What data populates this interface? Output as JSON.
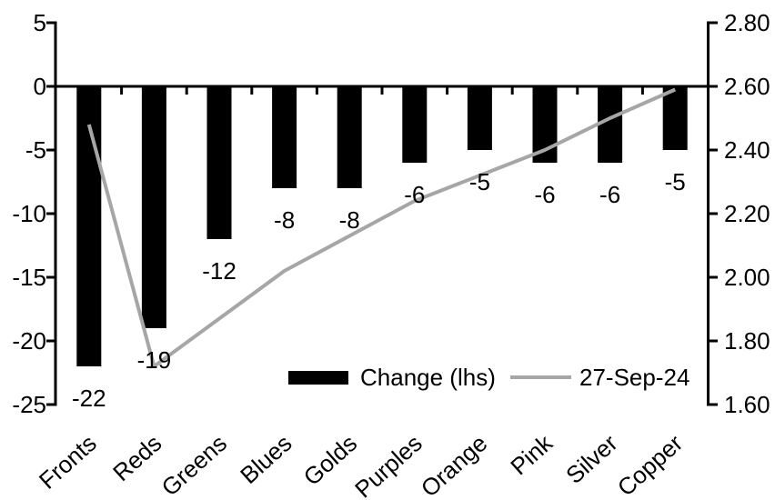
{
  "chart_data": {
    "type": "combo-bar-line",
    "title": "",
    "categories": [
      "Fronts",
      "Reds",
      "Greens",
      "Blues",
      "Golds",
      "Purples",
      "Orange",
      "Pink",
      "Silver",
      "Copper"
    ],
    "series": [
      {
        "name": "Change (lhs)",
        "type": "bar",
        "axis": "left",
        "color": "#000000",
        "values": [
          -22,
          -19,
          -12,
          -8,
          -8,
          -6,
          -5,
          -6,
          -6,
          -5
        ],
        "data_labels": [
          "-22",
          "-19",
          "-12",
          "-8",
          "-8",
          "-6",
          "-5",
          "-6",
          "-6",
          "-5"
        ]
      },
      {
        "name": "27-Sep-24",
        "type": "line",
        "axis": "right",
        "color": "#a6a6a6",
        "values": [
          2.48,
          1.72,
          1.87,
          2.02,
          2.13,
          2.24,
          2.32,
          2.4,
          2.5,
          2.59
        ]
      }
    ],
    "left_axis": {
      "min": -25,
      "max": 5,
      "step": 5,
      "tick_labels": [
        "5",
        "0",
        "-5",
        "-10",
        "-15",
        "-20",
        "-25"
      ]
    },
    "right_axis": {
      "min": 1.6,
      "max": 2.8,
      "step": 0.2,
      "tick_labels": [
        "2.80",
        "2.60",
        "2.40",
        "2.20",
        "2.00",
        "1.80",
        "1.60"
      ]
    },
    "legend": {
      "position": "inside-bottom",
      "items": [
        "Change (lhs)",
        "27-Sep-24"
      ]
    },
    "grid": false,
    "category_label_rotation_deg": -42
  },
  "colors": {
    "bar": "#000000",
    "line": "#a6a6a6",
    "axis": "#000000",
    "text": "#000000",
    "background": "#ffffff"
  }
}
